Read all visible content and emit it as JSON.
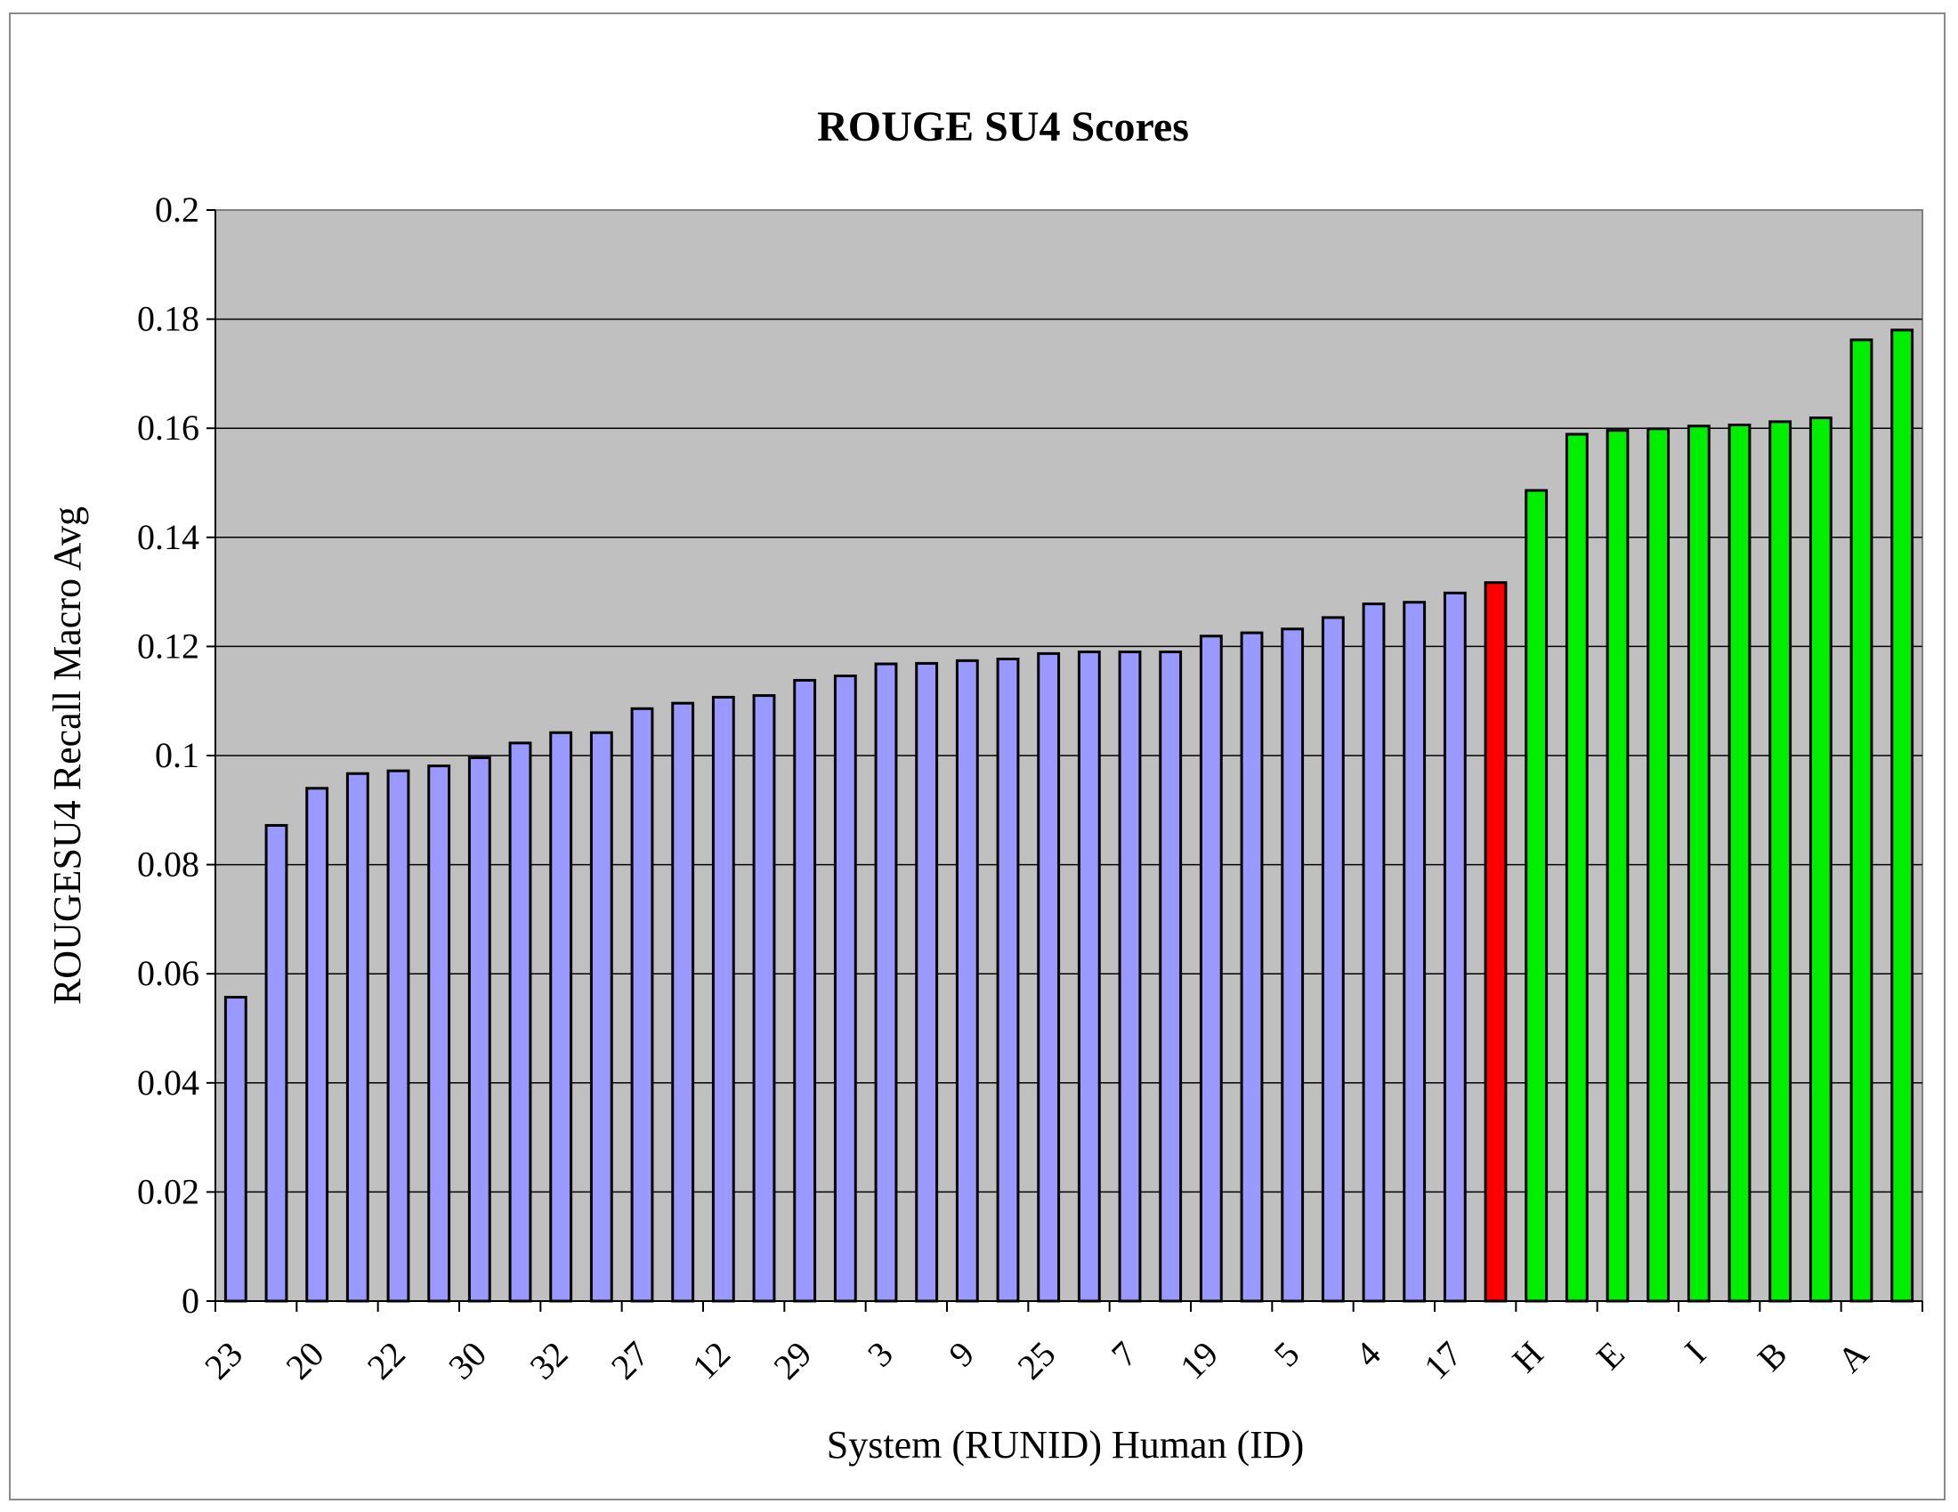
{
  "chart_data": {
    "type": "bar",
    "title": "ROUGE SU4 Scores",
    "xlabel": "System (RUNID) Human (ID)",
    "ylabel": "ROUGESU4 Recall Macro Avg",
    "ylim": [
      0,
      0.2
    ],
    "yticks": [
      "0",
      "0.02",
      "0.04",
      "0.06",
      "0.08",
      "0.1",
      "0.12",
      "0.14",
      "0.16",
      "0.18",
      "0.2"
    ],
    "grid": true,
    "legend": "none",
    "categories": [
      "23",
      "",
      "20",
      "",
      "22",
      "",
      "30",
      "",
      "32",
      "",
      "27",
      "",
      "12",
      "",
      "29",
      "",
      "3",
      "",
      "9",
      "",
      "25",
      "",
      "7",
      "",
      "19",
      "",
      "5",
      "",
      "4",
      "",
      "17",
      "",
      "H",
      "",
      "E",
      "",
      "I",
      "",
      "B",
      "",
      "A",
      ""
    ],
    "values": [
      0.0557,
      0.0872,
      0.094,
      0.0967,
      0.0972,
      0.0981,
      0.0996,
      0.1023,
      0.1042,
      0.1042,
      0.1086,
      0.1096,
      0.1107,
      0.111,
      0.1138,
      0.1146,
      0.1168,
      0.1169,
      0.1174,
      0.1177,
      0.1187,
      0.119,
      0.119,
      0.119,
      0.1219,
      0.1225,
      0.1232,
      0.1253,
      0.1278,
      0.1281,
      0.1298,
      0.1317,
      0.1486,
      0.1589,
      0.1596,
      0.1599,
      0.1604,
      0.1606,
      0.1612,
      0.1619,
      0.1762,
      0.178
    ],
    "bar_colors": [
      "#9999ff",
      "#9999ff",
      "#9999ff",
      "#9999ff",
      "#9999ff",
      "#9999ff",
      "#9999ff",
      "#9999ff",
      "#9999ff",
      "#9999ff",
      "#9999ff",
      "#9999ff",
      "#9999ff",
      "#9999ff",
      "#9999ff",
      "#9999ff",
      "#9999ff",
      "#9999ff",
      "#9999ff",
      "#9999ff",
      "#9999ff",
      "#9999ff",
      "#9999ff",
      "#9999ff",
      "#9999ff",
      "#9999ff",
      "#9999ff",
      "#9999ff",
      "#9999ff",
      "#9999ff",
      "#9999ff",
      "#ff0000",
      "#00ee00",
      "#00ee00",
      "#00ee00",
      "#00ee00",
      "#00ee00",
      "#00ee00",
      "#00ee00",
      "#00ee00",
      "#00ee00",
      "#00ee00"
    ],
    "plot_background": "#c0c0c0"
  }
}
